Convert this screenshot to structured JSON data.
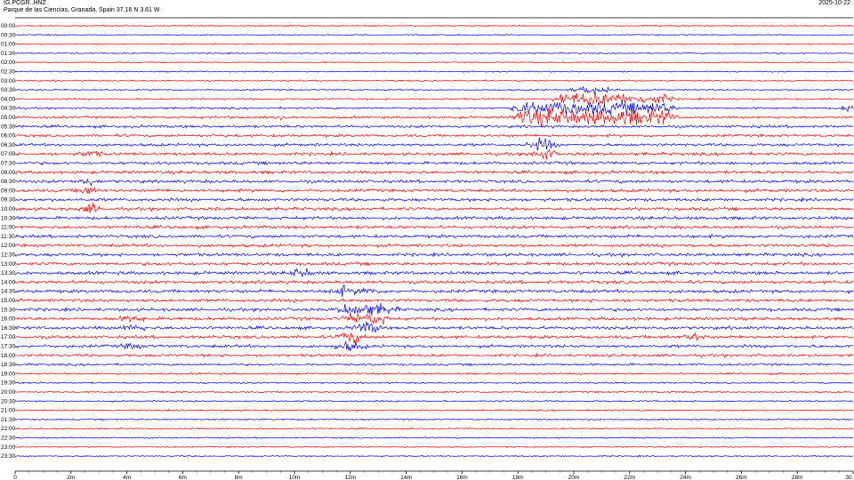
{
  "header": {
    "station": "IG.PCGR..HNZ",
    "location": "Parque de las Ciencias, Granada, Spain  37.16 N 3.61 W",
    "date": "2025-10-22"
  },
  "colors": {
    "odd_row": "#ff0000",
    "even_row": "#0000ff",
    "axis": "#000000"
  },
  "chart_data": {
    "type": "line",
    "title": "IG.PCGR..HNZ",
    "subtitle": "Parque de las Ciencias, Granada, Spain  37.16 N 3.61 W",
    "xlabel": "",
    "ylabel": "",
    "x_ticks": [
      "0",
      "2m",
      "4m",
      "6m",
      "8m",
      "10m",
      "12m",
      "14m",
      "16m",
      "18m",
      "20m",
      "22m",
      "24m",
      "26m",
      "28m",
      "30"
    ],
    "xlim_minutes": [
      0,
      30
    ],
    "row_labels": [
      "00:00",
      "00:30",
      "01:00",
      "01:30",
      "02:00",
      "02:30",
      "03:00",
      "03:30",
      "04:00",
      "04:30",
      "05:00",
      "05:30",
      "06:00",
      "06:30",
      "07:00",
      "07:30",
      "08:00",
      "08:30",
      "09:00",
      "09:30",
      "10:00",
      "10:30",
      "11:00",
      "11:30",
      "12:00",
      "12:30",
      "13:00",
      "13:30",
      "14:00",
      "14:30",
      "15:00",
      "15:30",
      "16:00",
      "16:30",
      "17:00",
      "17:30",
      "18:00",
      "18:30",
      "19:00",
      "19:30",
      "20:00",
      "20:30",
      "21:00",
      "21:30",
      "22:00",
      "22:30",
      "23:00",
      "23:30"
    ],
    "row_activity": [
      0.2,
      0.2,
      0.2,
      0.2,
      0.15,
      0.2,
      0.25,
      0.3,
      0.35,
      0.45,
      0.6,
      0.7,
      0.7,
      0.75,
      0.8,
      0.8,
      0.85,
      0.85,
      0.85,
      0.85,
      0.85,
      0.85,
      0.85,
      0.85,
      0.85,
      0.85,
      0.9,
      0.9,
      0.9,
      0.9,
      0.85,
      0.85,
      0.85,
      0.85,
      0.85,
      0.8,
      0.7,
      0.55,
      0.4,
      0.35,
      0.35,
      0.3,
      0.3,
      0.3,
      0.25,
      0.25,
      0.2,
      0.2
    ],
    "grid": false,
    "legend": "none"
  }
}
